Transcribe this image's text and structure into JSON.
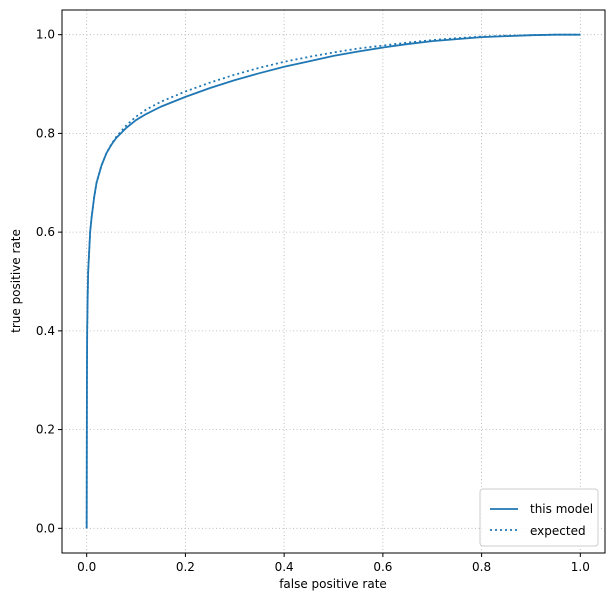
{
  "chart_data": {
    "type": "line",
    "xlabel": "false positive rate",
    "ylabel": "true positive rate",
    "xlim": [
      -0.05,
      1.05
    ],
    "ylim": [
      -0.05,
      1.05
    ],
    "xticks": [
      0.0,
      0.2,
      0.4,
      0.6,
      0.8,
      1.0
    ],
    "yticks": [
      0.0,
      0.2,
      0.4,
      0.6,
      0.8,
      1.0
    ],
    "xtick_labels": [
      "0.0",
      "0.2",
      "0.4",
      "0.6",
      "0.8",
      "1.0"
    ],
    "ytick_labels": [
      "0.0",
      "0.2",
      "0.4",
      "0.6",
      "0.8",
      "1.0"
    ],
    "grid": true,
    "legend_position": "lower-right",
    "series": [
      {
        "name": "this model",
        "style": "solid",
        "color": "#1f77b4",
        "x": [
          0.0,
          0.0005,
          0.001,
          0.002,
          0.003,
          0.005,
          0.007,
          0.01,
          0.015,
          0.02,
          0.03,
          0.04,
          0.05,
          0.06,
          0.08,
          0.1,
          0.12,
          0.15,
          0.2,
          0.25,
          0.3,
          0.35,
          0.4,
          0.45,
          0.5,
          0.55,
          0.6,
          0.65,
          0.7,
          0.75,
          0.8,
          0.85,
          0.9,
          0.95,
          1.0
        ],
        "y": [
          0.0,
          0.3,
          0.4,
          0.47,
          0.52,
          0.56,
          0.6,
          0.63,
          0.67,
          0.7,
          0.735,
          0.76,
          0.777,
          0.791,
          0.811,
          0.827,
          0.839,
          0.854,
          0.874,
          0.892,
          0.908,
          0.922,
          0.935,
          0.946,
          0.957,
          0.966,
          0.974,
          0.981,
          0.987,
          0.991,
          0.995,
          0.997,
          0.999,
          1.0,
          1.0
        ]
      },
      {
        "name": "expected",
        "style": "dotted",
        "color": "#1f77b4",
        "x": [
          0.0,
          0.0005,
          0.001,
          0.002,
          0.003,
          0.005,
          0.007,
          0.01,
          0.015,
          0.02,
          0.03,
          0.04,
          0.05,
          0.06,
          0.08,
          0.1,
          0.12,
          0.15,
          0.2,
          0.25,
          0.3,
          0.35,
          0.4,
          0.45,
          0.5,
          0.55,
          0.6,
          0.65,
          0.7,
          0.75,
          0.8,
          0.85,
          0.9,
          0.95,
          1.0
        ],
        "y": [
          0.0,
          0.3,
          0.4,
          0.47,
          0.52,
          0.56,
          0.6,
          0.63,
          0.67,
          0.7,
          0.735,
          0.76,
          0.778,
          0.793,
          0.816,
          0.834,
          0.848,
          0.864,
          0.885,
          0.903,
          0.919,
          0.933,
          0.945,
          0.955,
          0.964,
          0.972,
          0.978,
          0.984,
          0.989,
          0.993,
          0.996,
          0.998,
          0.999,
          1.0,
          1.0
        ]
      }
    ]
  }
}
